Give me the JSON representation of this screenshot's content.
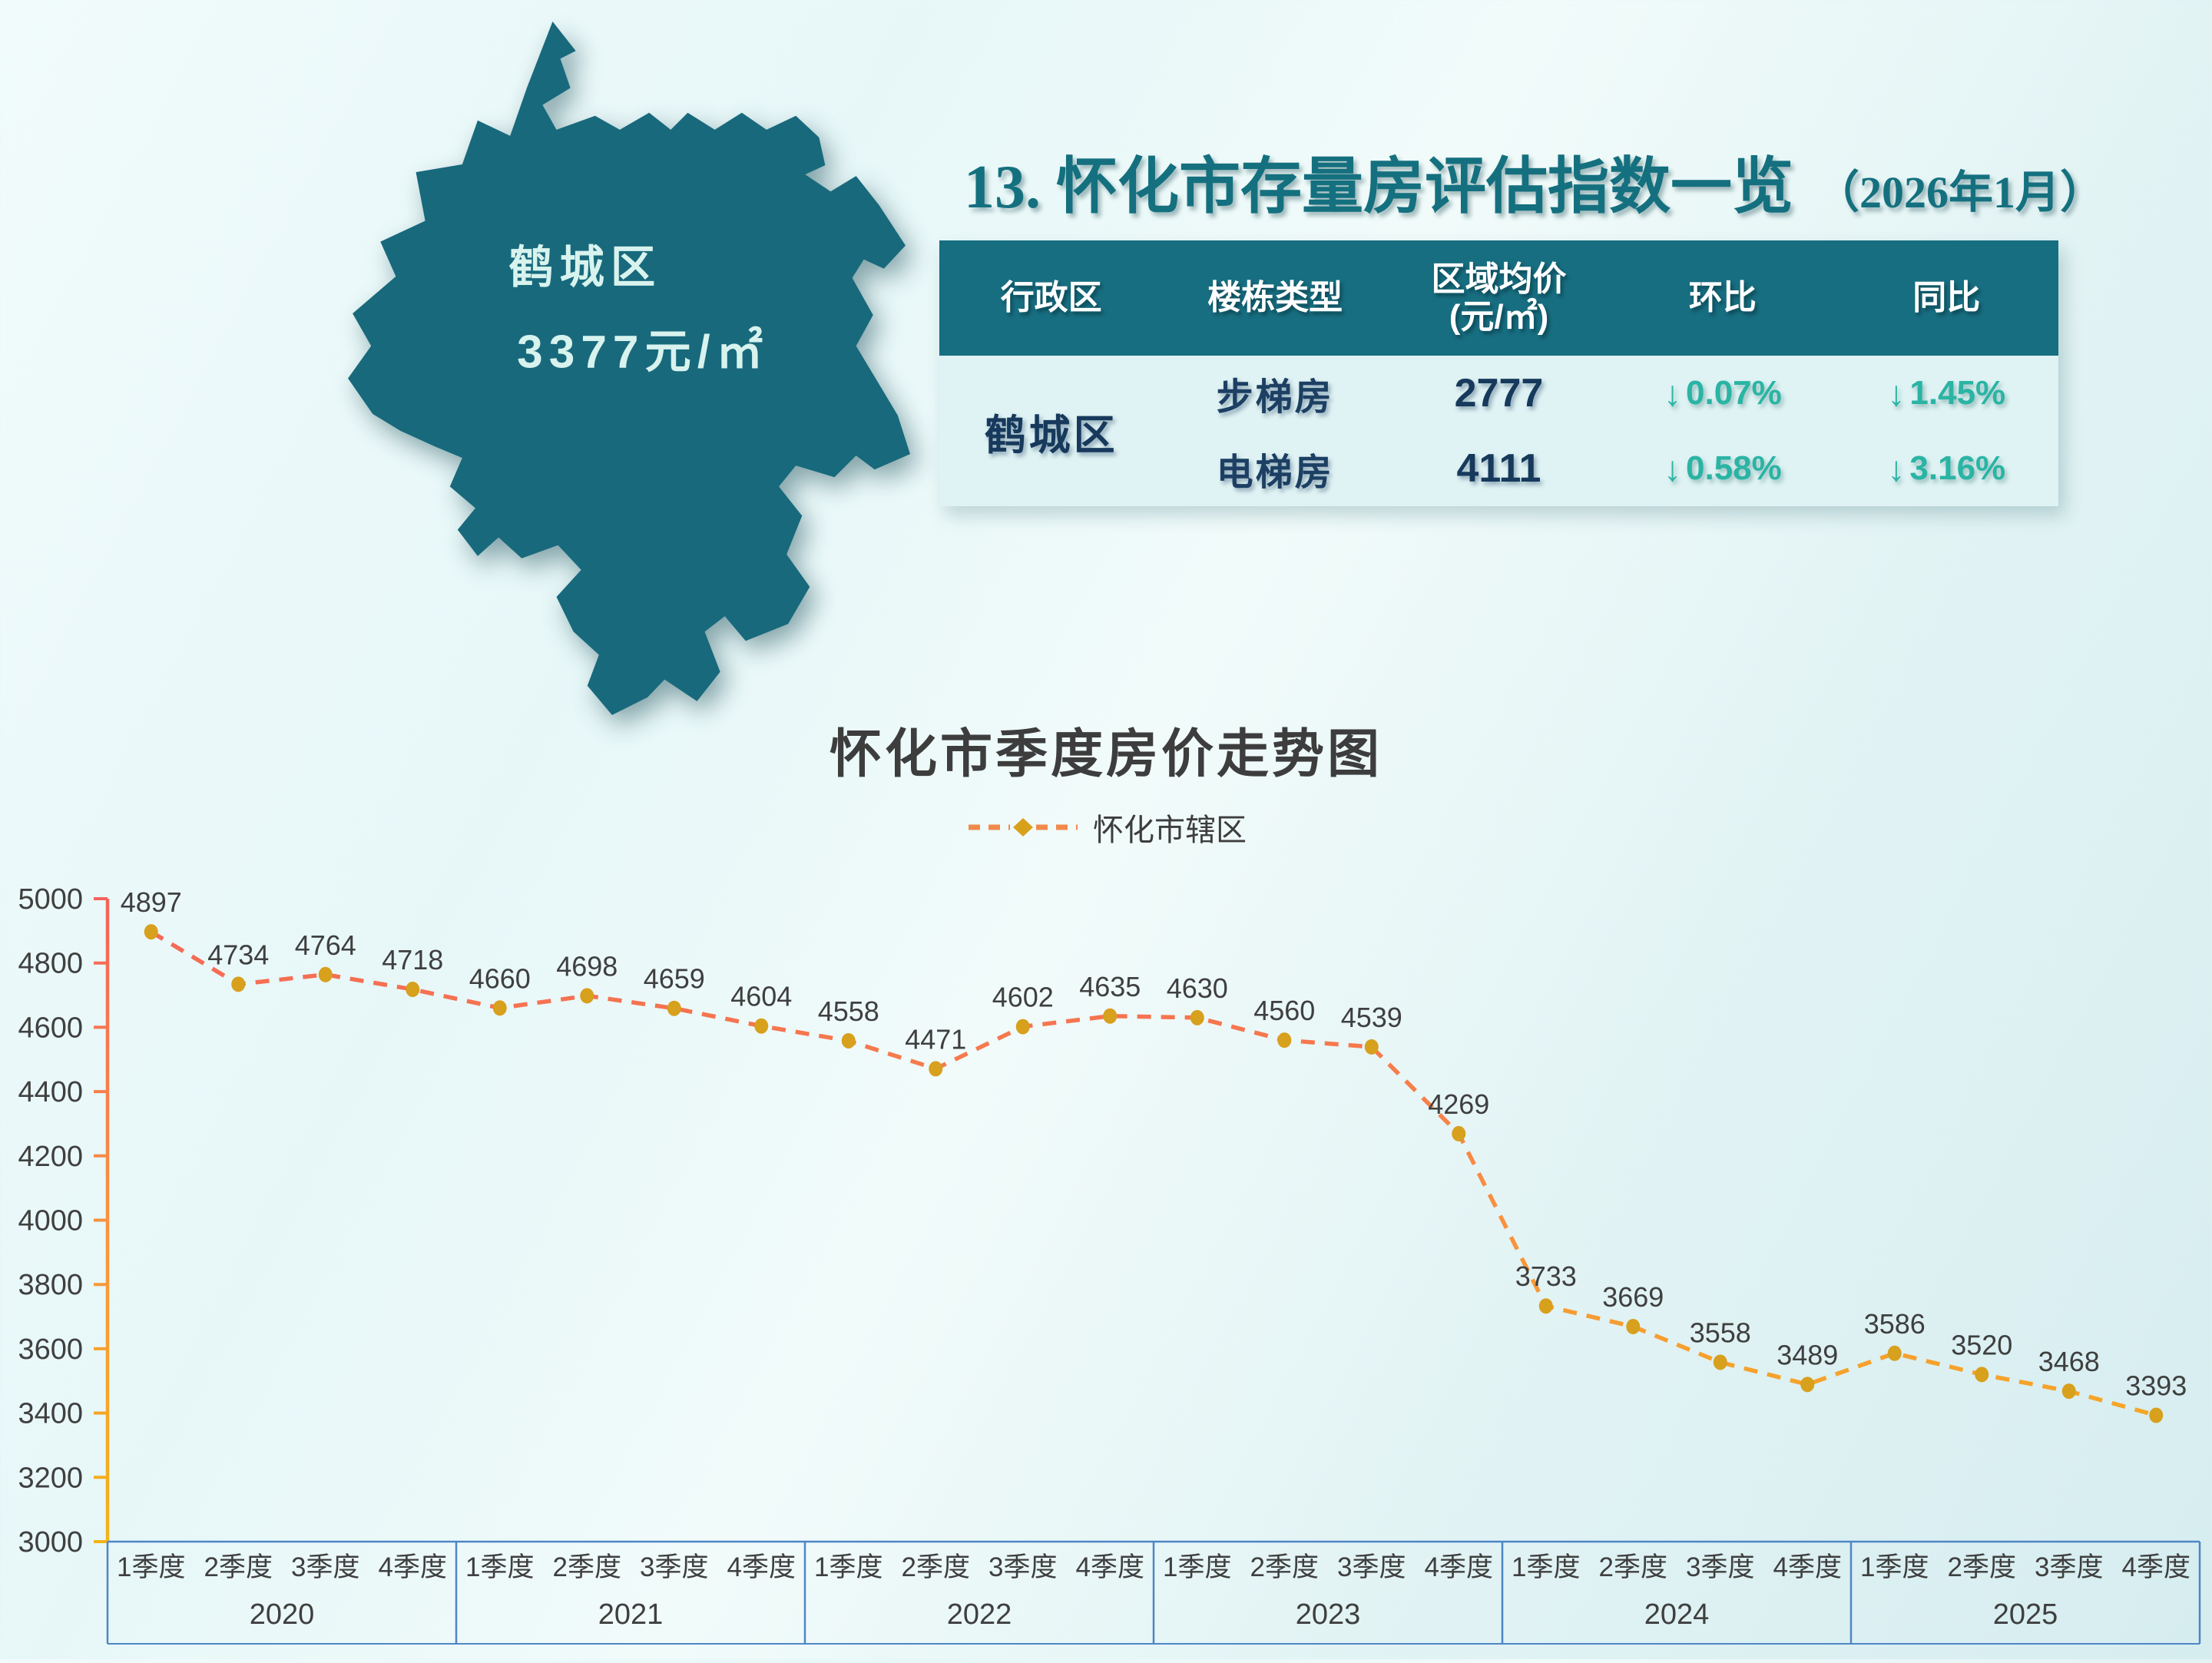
{
  "map": {
    "district_label": "鹤城区",
    "price_label": "3377元/㎡",
    "fill_color": "#18697c",
    "text_color": "#d8f3ee"
  },
  "header": {
    "title": "13. 怀化市存量房评估指数一览",
    "date": "（2026年1月）"
  },
  "table": {
    "columns": [
      "行政区",
      "楼栋类型",
      "区域均价",
      "环比",
      "同比"
    ],
    "price_col_unit": "(元/㎡)",
    "district": "鹤城区",
    "down_arrow": "↓",
    "rows": [
      {
        "type": "步梯房",
        "price": "2777",
        "mom": "0.07%",
        "yoy": "1.45%"
      },
      {
        "type": "电梯房",
        "price": "4111",
        "mom": "0.58%",
        "yoy": "3.16%"
      }
    ]
  },
  "chart_data": {
    "type": "line",
    "title": "怀化市季度房价走势图",
    "legend": "怀化市辖区",
    "legend_position": "top",
    "line_style": "dashed",
    "grid": false,
    "years": [
      "2020",
      "2021",
      "2022",
      "2023",
      "2024",
      "2025"
    ],
    "quarter_labels": [
      "1季度",
      "2季度",
      "3季度",
      "4季度"
    ],
    "values": [
      4897,
      4734,
      4764,
      4718,
      4660,
      4698,
      4659,
      4604,
      4558,
      4471,
      4602,
      4635,
      4630,
      4560,
      4539,
      4269,
      3733,
      3669,
      3558,
      3489,
      3586,
      3520,
      3468,
      3393
    ],
    "ylim": [
      3000,
      5000
    ],
    "y_ticks": [
      3000,
      3200,
      3400,
      3600,
      3800,
      4000,
      4200,
      4400,
      4600,
      4800,
      5000
    ],
    "colors": {
      "line_top": "#f4635a",
      "line_mid": "#f8923f",
      "line_bottom": "#f2b417",
      "marker": "#d7a01d",
      "data_label": "#3f3f3f",
      "axis_label": "#404040",
      "axis_blue": "#4e86c6",
      "legend_dash": "#f08a4b",
      "legend_diamond": "#d9a11a"
    }
  }
}
